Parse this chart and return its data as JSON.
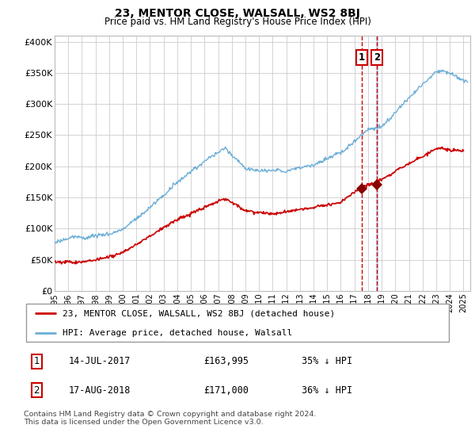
{
  "title": "23, MENTOR CLOSE, WALSALL, WS2 8BJ",
  "subtitle": "Price paid vs. HM Land Registry's House Price Index (HPI)",
  "legend_line1": "23, MENTOR CLOSE, WALSALL, WS2 8BJ (detached house)",
  "legend_line2": "HPI: Average price, detached house, Walsall",
  "transaction1_date": "14-JUL-2017",
  "transaction1_price": "£163,995",
  "transaction1_pct": "35% ↓ HPI",
  "transaction2_date": "17-AUG-2018",
  "transaction2_price": "£171,000",
  "transaction2_pct": "36% ↓ HPI",
  "footnote": "Contains HM Land Registry data © Crown copyright and database right 2024.\nThis data is licensed under the Open Government Licence v3.0.",
  "hpi_color": "#6baed6",
  "price_color": "#cc0000",
  "vline_color": "#cc0000",
  "box_color": "#cc0000",
  "ylim": [
    0,
    410000
  ],
  "ytick_vals": [
    0,
    50000,
    100000,
    150000,
    200000,
    250000,
    300000,
    350000,
    400000
  ],
  "ytick_labels": [
    "£0",
    "£50K",
    "£100K",
    "£150K",
    "£200K",
    "£250K",
    "£300K",
    "£350K",
    "£400K"
  ],
  "transaction1_year": 2017.53,
  "transaction2_year": 2018.63,
  "transaction1_price_val": 163995,
  "transaction2_price_val": 171000,
  "xmin": 1995.0,
  "xmax": 2025.5
}
